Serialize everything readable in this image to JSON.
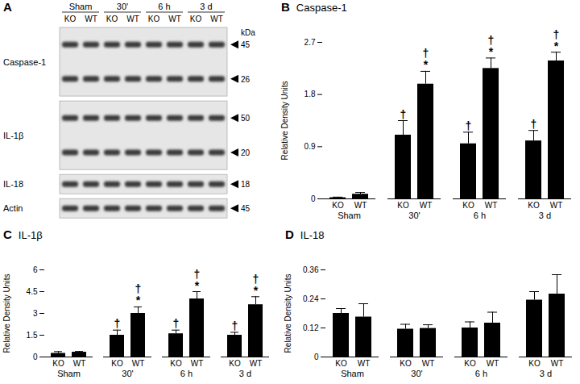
{
  "blot": {
    "panel": "A",
    "groups": [
      "Sham",
      "30'",
      "6 h",
      "3 d"
    ],
    "lanes": [
      "KO",
      "WT",
      "KO",
      "WT",
      "KO",
      "WT",
      "KO",
      "WT"
    ],
    "unit": "kDa",
    "strips": [
      {
        "name": "Caspase-1",
        "markers": [
          45,
          26
        ]
      },
      {
        "name": "IL-1β",
        "markers": [
          50,
          20
        ]
      },
      {
        "name": "IL-18",
        "markers": [
          18
        ]
      },
      {
        "name": "Actin",
        "markers": [
          45
        ]
      }
    ]
  },
  "chart_data": [
    {
      "panel": "B",
      "type": "bar",
      "title": "Caspase-1",
      "y_label": "Relative Density Units",
      "groups": [
        "Sham",
        "30'",
        "6 h",
        "3 d"
      ],
      "categories": [
        "KO",
        "WT",
        "KO",
        "WT",
        "KO",
        "WT",
        "KO",
        "WT"
      ],
      "values": [
        0.02,
        0.08,
        1.1,
        1.98,
        0.95,
        2.25,
        1.0,
        2.38
      ],
      "errors": [
        0.01,
        0.03,
        0.25,
        0.22,
        0.2,
        0.18,
        0.18,
        0.15
      ],
      "significance": [
        null,
        null,
        [
          "†"
        ],
        [
          "†",
          "*"
        ],
        [
          "†"
        ],
        [
          "†",
          "*"
        ],
        [
          "†"
        ],
        [
          "†",
          "*"
        ]
      ],
      "color": "#000000",
      "ylim": [
        0,
        2.7
      ],
      "yticks": [
        0,
        0.9,
        1.8,
        2.7
      ]
    },
    {
      "panel": "C",
      "type": "bar",
      "title": "IL-1β",
      "y_label": "Relative Density Units",
      "groups": [
        "Sham",
        "30'",
        "6 h",
        "3 d"
      ],
      "categories": [
        "KO",
        "WT",
        "KO",
        "WT",
        "KO",
        "WT",
        "KO",
        "WT"
      ],
      "values": [
        0.25,
        0.33,
        1.5,
        3.0,
        1.6,
        4.0,
        1.5,
        3.6
      ],
      "errors": [
        0.12,
        0.05,
        0.35,
        0.45,
        0.25,
        0.5,
        0.2,
        0.55
      ],
      "significance": [
        null,
        null,
        [
          "†"
        ],
        [
          "†",
          "*"
        ],
        [
          "†"
        ],
        [
          "†",
          "*"
        ],
        [
          "†"
        ],
        [
          "†",
          "*"
        ]
      ],
      "color": "#000000",
      "ylim": [
        0,
        6
      ],
      "yticks": [
        0,
        1.5,
        3,
        4.5,
        6
      ]
    },
    {
      "panel": "D",
      "type": "bar",
      "title": "IL-18",
      "y_label": "Relative Density Units",
      "groups": [
        "Sham",
        "30'",
        "6 h",
        "3 d"
      ],
      "categories": [
        "KO",
        "WT",
        "KO",
        "WT",
        "KO",
        "WT",
        "KO",
        "WT"
      ],
      "values": [
        0.18,
        0.165,
        0.115,
        0.118,
        0.12,
        0.14,
        0.235,
        0.26
      ],
      "errors": [
        0.02,
        0.055,
        0.02,
        0.015,
        0.025,
        0.045,
        0.035,
        0.08
      ],
      "significance": [
        null,
        null,
        null,
        null,
        null,
        null,
        null,
        null
      ],
      "color": "#000000",
      "ylim": [
        0,
        0.36
      ],
      "yticks": [
        0,
        0.12,
        0.24,
        0.36
      ]
    }
  ]
}
